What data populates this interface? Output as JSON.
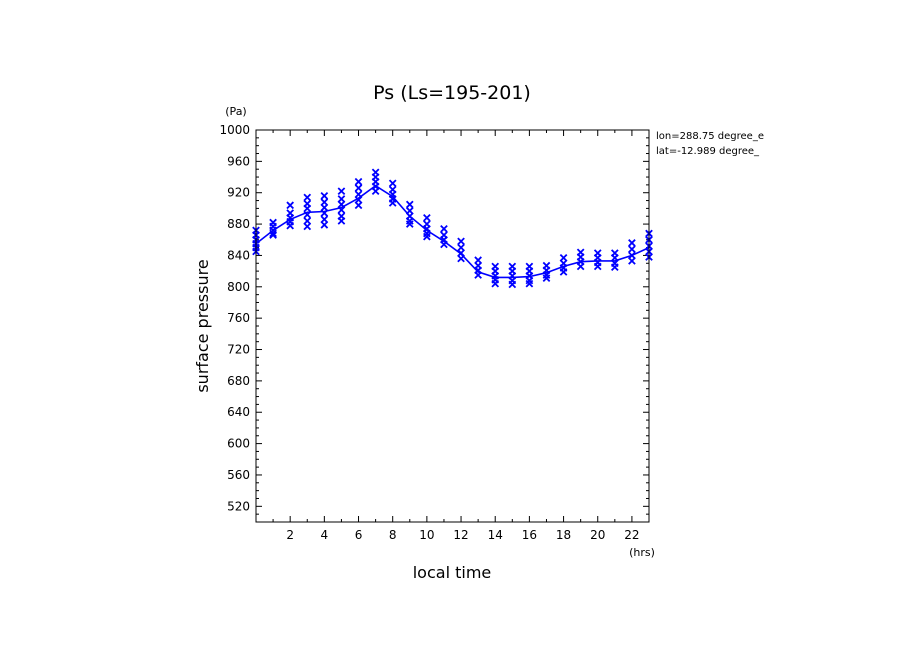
{
  "chart_data": {
    "type": "scatter",
    "title": "Ps (Ls=195-201)",
    "xlabel": "local time",
    "ylabel": "surface pressure",
    "x_unit": "(hrs)",
    "y_unit": "(Pa)",
    "xlim": [
      0,
      23
    ],
    "ylim": [
      500,
      1000
    ],
    "x_ticks": [
      2,
      4,
      6,
      8,
      10,
      12,
      14,
      16,
      18,
      20,
      22
    ],
    "y_ticks": [
      520,
      560,
      600,
      640,
      680,
      720,
      760,
      800,
      840,
      880,
      920,
      960,
      1000
    ],
    "annotations": [
      "lon=288.75 degree_e",
      "lat=-12.989 degree_"
    ],
    "color": "#0000ff",
    "mean_line": {
      "x": [
        0,
        1,
        2,
        3,
        4,
        5,
        6,
        7,
        8,
        9,
        10,
        11,
        12,
        13,
        14,
        15,
        16,
        17,
        18,
        19,
        20,
        21,
        22,
        23
      ],
      "y": [
        855,
        872,
        886,
        895,
        896,
        901,
        913,
        929,
        915,
        890,
        872,
        858,
        842,
        819,
        812,
        812,
        813,
        818,
        826,
        832,
        833,
        833,
        840,
        850
      ]
    },
    "scatter_points": [
      {
        "x": 0,
        "y": [
          872,
          866,
          860,
          855,
          850,
          845
        ]
      },
      {
        "x": 1,
        "y": [
          882,
          877,
          872,
          868,
          866
        ]
      },
      {
        "x": 2,
        "y": [
          904,
          894,
          888,
          883,
          878
        ]
      },
      {
        "x": 3,
        "y": [
          914,
          906,
          900,
          892,
          884,
          877
        ]
      },
      {
        "x": 4,
        "y": [
          916,
          908,
          901,
          894,
          886,
          879
        ]
      },
      {
        "x": 5,
        "y": [
          922,
          912,
          905,
          898,
          890,
          884
        ]
      },
      {
        "x": 6,
        "y": [
          934,
          926,
          918,
          911,
          904
        ]
      },
      {
        "x": 7,
        "y": [
          946,
          940,
          934,
          928,
          922
        ]
      },
      {
        "x": 8,
        "y": [
          932,
          924,
          918,
          912,
          907
        ]
      },
      {
        "x": 9,
        "y": [
          905,
          897,
          890,
          884,
          880
        ]
      },
      {
        "x": 10,
        "y": [
          888,
          880,
          874,
          868,
          864
        ]
      },
      {
        "x": 11,
        "y": [
          874,
          866,
          860,
          854
        ]
      },
      {
        "x": 12,
        "y": [
          858,
          850,
          843,
          836
        ]
      },
      {
        "x": 13,
        "y": [
          834,
          827,
          821,
          815
        ]
      },
      {
        "x": 14,
        "y": [
          826,
          820,
          814,
          809,
          804
        ]
      },
      {
        "x": 15,
        "y": [
          826,
          820,
          814,
          808,
          803
        ]
      },
      {
        "x": 16,
        "y": [
          826,
          820,
          814,
          808,
          804
        ]
      },
      {
        "x": 17,
        "y": [
          827,
          821,
          815,
          811
        ]
      },
      {
        "x": 18,
        "y": [
          837,
          830,
          824,
          819
        ]
      },
      {
        "x": 19,
        "y": [
          844,
          838,
          832,
          826
        ]
      },
      {
        "x": 20,
        "y": [
          843,
          837,
          831,
          826
        ]
      },
      {
        "x": 21,
        "y": [
          843,
          837,
          830,
          825
        ]
      },
      {
        "x": 22,
        "y": [
          856,
          848,
          840,
          833
        ]
      },
      {
        "x": 23,
        "y": [
          868,
          860,
          852,
          845,
          838
        ]
      }
    ]
  }
}
